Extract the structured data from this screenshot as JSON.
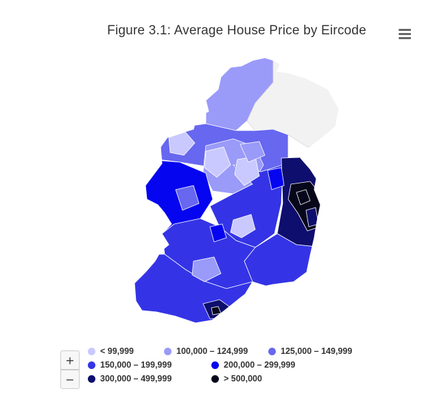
{
  "title": "Figure 3.1: Average House Price by Eircode",
  "menu": {
    "icon": "hamburger-menu-icon"
  },
  "zoom": {
    "in_label": "+",
    "out_label": "−"
  },
  "legend": [
    {
      "label": "< 99,999",
      "color": "#c9c9ff"
    },
    {
      "label": "100,000 – 124,999",
      "color": "#9a9af9"
    },
    {
      "label": "125,000 – 149,999",
      "color": "#6767f0"
    },
    {
      "label": "150,000 – 199,999",
      "color": "#3434e6"
    },
    {
      "label": "200,000 – 299,999",
      "color": "#0505f0"
    },
    {
      "label": "300,000 – 499,999",
      "color": "#0e0e6e"
    },
    {
      "label": "> 500,000",
      "color": "#07071c"
    }
  ],
  "regions": [
    {
      "area": "donegal",
      "class": 1
    },
    {
      "area": "northern-ireland",
      "class": null
    },
    {
      "area": "north-midlands",
      "class": 2
    },
    {
      "area": "midlands",
      "class": 1
    },
    {
      "area": "mayo-galway-west",
      "class": 4
    },
    {
      "area": "east",
      "class": 3
    },
    {
      "area": "dublin",
      "class": 5
    },
    {
      "area": "dublin-core",
      "class": 6
    },
    {
      "area": "south-east",
      "class": 3
    },
    {
      "area": "munster",
      "class": 3
    },
    {
      "area": "kerry-cork",
      "class": 3
    },
    {
      "area": "cork-city",
      "class": 5
    }
  ]
}
